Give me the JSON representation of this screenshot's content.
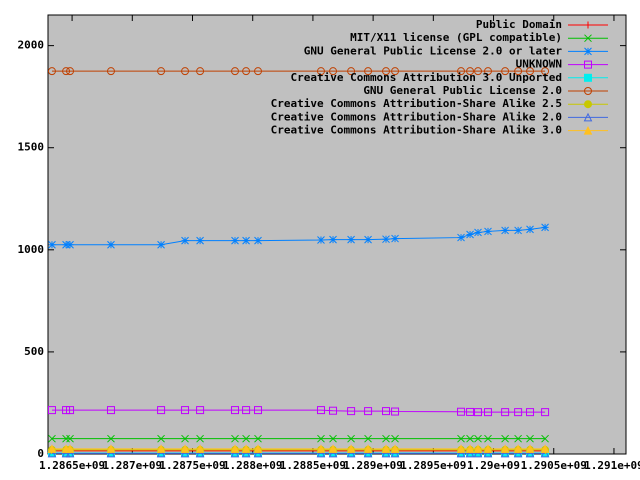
{
  "chart_data": {
    "type": "line",
    "x": [
      1286333000,
      1286450000,
      1286483000,
      1286823000,
      1287239000,
      1287438000,
      1287563000,
      1287853000,
      1287945000,
      1288044000,
      1288567000,
      1288667000,
      1288817000,
      1288958000,
      1289107000,
      1289182000,
      1289730000,
      1289805000,
      1289871000,
      1289954000,
      1290096000,
      1290204000,
      1290303000,
      1290428000
    ],
    "series": [
      {
        "name": "Public Domain",
        "color": "#ff0000",
        "marker": "plus",
        "values": [
          15,
          15,
          15,
          15,
          15,
          15,
          15,
          15,
          15,
          15,
          15,
          15,
          15,
          15,
          15,
          15,
          15,
          15,
          15,
          15,
          15,
          15,
          15,
          15
        ]
      },
      {
        "name": "MIT/X11 license (GPL compatible)",
        "color": "#00c000",
        "marker": "cross",
        "values": [
          75,
          75,
          75,
          75,
          75,
          75,
          75,
          75,
          75,
          75,
          75,
          75,
          75,
          75,
          75,
          75,
          75,
          75,
          75,
          75,
          75,
          75,
          75,
          75
        ]
      },
      {
        "name": "GNU General Public License 2.0 or later",
        "color": "#0080ff",
        "marker": "star",
        "values": [
          1025,
          1025,
          1025,
          1025,
          1025,
          1045,
          1045,
          1045,
          1045,
          1045,
          1048,
          1050,
          1050,
          1050,
          1052,
          1055,
          1060,
          1075,
          1085,
          1090,
          1095,
          1095,
          1100,
          1110
        ]
      },
      {
        "name": "UNKNOWN",
        "color": "#c000ff",
        "marker": "square",
        "values": [
          215,
          215,
          215,
          215,
          215,
          215,
          215,
          215,
          215,
          215,
          215,
          212,
          210,
          210,
          210,
          208,
          207,
          206,
          205,
          205,
          205,
          205,
          205,
          205
        ]
      },
      {
        "name": "Creative Commons Attribution 3.0 Unported",
        "color": "#00eeee",
        "marker": "filled-square",
        "values": [
          5,
          5,
          5,
          5,
          5,
          5,
          5,
          5,
          5,
          5,
          5,
          5,
          5,
          5,
          5,
          5,
          5,
          5,
          5,
          5,
          5,
          5,
          5,
          5
        ]
      },
      {
        "name": "GNU General Public License 2.0",
        "color": "#c04000",
        "marker": "circle",
        "values": [
          1875,
          1875,
          1875,
          1875,
          1875,
          1875,
          1875,
          1875,
          1875,
          1875,
          1875,
          1875,
          1875,
          1875,
          1875,
          1875,
          1875,
          1875,
          1875,
          1875,
          1875,
          1875,
          1875,
          1875
        ]
      },
      {
        "name": "Creative Commons Attribution-Share Alike 2.5",
        "color": "#c8c800",
        "marker": "filled-circle",
        "values": [
          20,
          20,
          20,
          20,
          20,
          20,
          20,
          20,
          20,
          20,
          20,
          20,
          20,
          20,
          20,
          20,
          20,
          20,
          20,
          20,
          20,
          20,
          20,
          20
        ]
      },
      {
        "name": "Creative Commons Attribution-Share Alike 2.0",
        "color": "#4169e1",
        "marker": "triangle",
        "values": [
          3,
          3,
          3,
          3,
          3,
          3,
          3,
          3,
          3,
          3,
          3,
          3,
          3,
          3,
          3,
          3,
          3,
          3,
          3,
          3,
          3,
          3,
          3,
          3
        ]
      },
      {
        "name": "Creative Commons Attribution-Share Alike 3.0",
        "color": "#ffc020",
        "marker": "filled-triangle",
        "values": [
          25,
          25,
          25,
          25,
          25,
          25,
          25,
          25,
          25,
          25,
          25,
          25,
          25,
          25,
          25,
          25,
          25,
          25,
          25,
          25,
          25,
          25,
          25,
          25
        ]
      }
    ],
    "xlim": [
      1286300000,
      1291100000
    ],
    "xticks": [
      {
        "value": 1286500000,
        "label": "1.2865e+09"
      },
      {
        "value": 1287000000,
        "label": "1.287e+09"
      },
      {
        "value": 1287500000,
        "label": "1.2875e+09"
      },
      {
        "value": 1288000000,
        "label": "1.288e+09"
      },
      {
        "value": 1288500000,
        "label": "1.2885e+09"
      },
      {
        "value": 1289000000,
        "label": "1.289e+09"
      },
      {
        "value": 1289500000,
        "label": "1.2895e+09"
      },
      {
        "value": 1290000000,
        "label": "1.29e+09"
      },
      {
        "value": 1290500000,
        "label": "1.2905e+09"
      },
      {
        "value": 1291000000,
        "label": "1.291e+09"
      }
    ],
    "ylim": [
      0,
      2150
    ],
    "yticks": [
      0,
      500,
      1000,
      1500,
      2000
    ],
    "legend": "top-right",
    "plot_background": "#c0c0c0"
  }
}
